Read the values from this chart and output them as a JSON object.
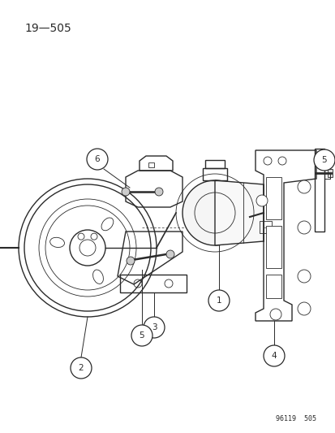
{
  "title_label": "19—505",
  "watermark": "96119  505",
  "background_color": "#ffffff",
  "line_color": "#2a2a2a",
  "fig_width": 4.14,
  "fig_height": 5.33,
  "dpi": 100
}
